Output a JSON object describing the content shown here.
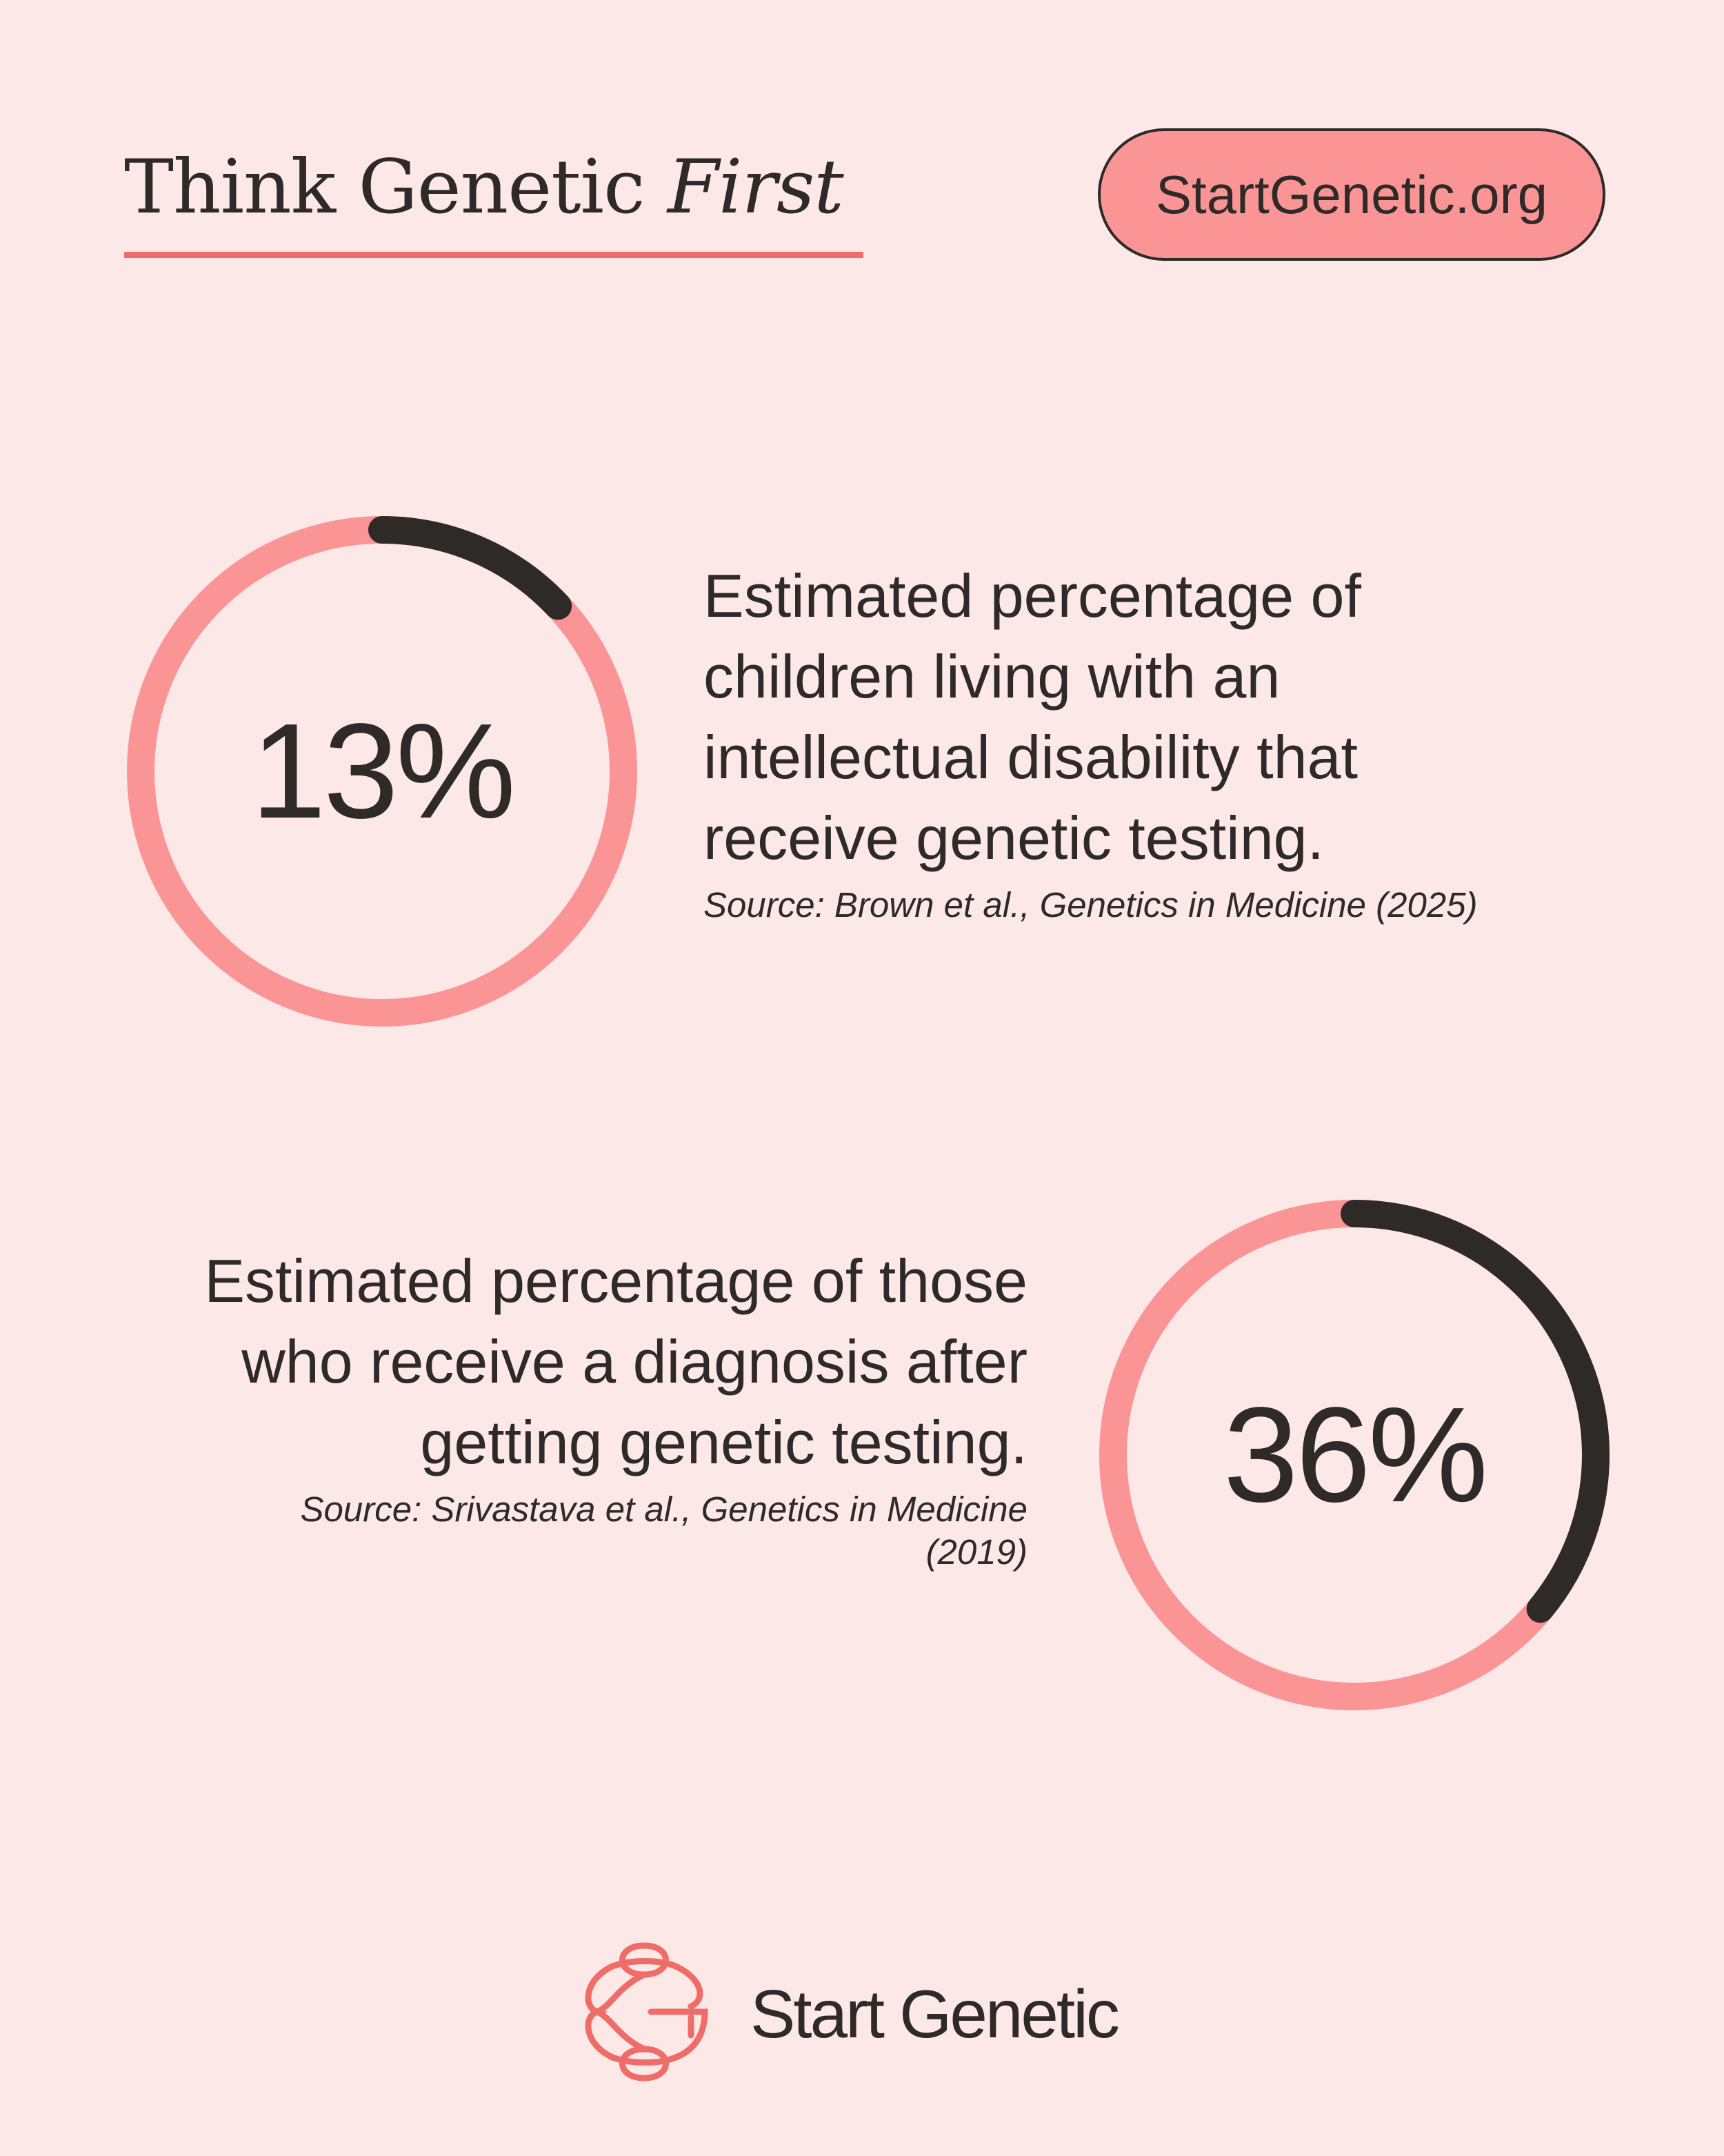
{
  "header": {
    "title_main": "Think Genetic",
    "title_emphasis": "First",
    "website": "StartGenetic.org"
  },
  "stats": [
    {
      "value": "13%",
      "percent": 13,
      "description": "Estimated percentage of children living with an intellectual disability that receive genetic testing.",
      "source": "Source: Brown et al., Genetics in Medicine (2025)"
    },
    {
      "value": "36%",
      "percent": 36,
      "description": "Estimated percentage of those who receive a diagnosis after getting genetic testing.",
      "source": "Source: Srivastava et al., Genetics in Medicine (2019)"
    }
  ],
  "footer": {
    "brand_name": "Start Genetic",
    "logo_icon": "dna-helix-g-icon"
  },
  "colors": {
    "background": "#fde8e8",
    "accent": "#fb9494",
    "underline": "#ef6d68",
    "ring_track": "#fb9494",
    "ring_fill": "#2e2a28",
    "text": "#2e2a28"
  }
}
